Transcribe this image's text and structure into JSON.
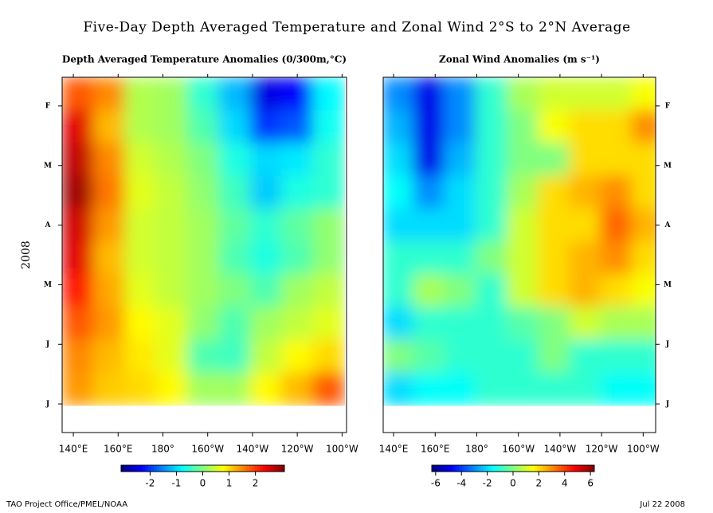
{
  "title": "Five-Day Depth Averaged Temperature and Zonal Wind  2°S to 2°N Average",
  "ylabel": "2008",
  "footer_left": "TAO Project Office/PMEL/NOAA",
  "footer_right": "Jul 22 2008",
  "chart_data": [
    {
      "type": "heatmap",
      "title": "Depth Averaged Temperature Anomalies (0/300m,°C)",
      "x": [
        142,
        156,
        170,
        184,
        198,
        212,
        226,
        240,
        254
      ],
      "y": [
        0.8,
        1.35,
        1.9,
        2.45,
        3.0,
        3.55,
        4.1,
        4.65,
        5.2,
        5.75
      ],
      "values": [
        [
          1.8,
          1.5,
          0.3,
          0.2,
          -0.5,
          -1.2,
          -2.5,
          -2.3,
          -0.8
        ],
        [
          2.5,
          1.2,
          0.3,
          0.2,
          -0.3,
          -1.0,
          -2.0,
          -1.8,
          -0.7
        ],
        [
          2.7,
          1.5,
          0.5,
          0.3,
          0,
          -0.6,
          -1.0,
          -0.9,
          -0.5
        ],
        [
          2.9,
          1.6,
          0.6,
          0.4,
          0.1,
          -0.4,
          -1.1,
          -0.6,
          -0.5
        ],
        [
          2.6,
          1.4,
          0.5,
          0.4,
          0.2,
          -0.2,
          -0.5,
          -0.2,
          0.1
        ],
        [
          2.5,
          1.2,
          0.5,
          0.4,
          0.2,
          -0.3,
          -0.6,
          -0.3,
          0.1
        ],
        [
          2.2,
          1.3,
          0.6,
          0.4,
          0.2,
          0.0,
          -0.3,
          0.2,
          0.4
        ],
        [
          1.8,
          1.4,
          0.8,
          0.6,
          0.1,
          -0.3,
          0.2,
          0.4,
          0.6
        ],
        [
          1.5,
          1.2,
          0.9,
          0.6,
          -0.3,
          -0.4,
          0.4,
          0.8,
          1.0
        ],
        [
          1.4,
          1.1,
          1.0,
          0.8,
          0.2,
          0.2,
          0.8,
          1.2,
          1.8
        ]
      ],
      "xlim": [
        135,
        262
      ],
      "ylim": [
        0.52,
        6.48
      ],
      "xticks": [
        {
          "value": 140,
          "label": "140°E"
        },
        {
          "value": 160,
          "label": "160°E"
        },
        {
          "value": 180,
          "label": "180°"
        },
        {
          "value": 200,
          "label": "160°W"
        },
        {
          "value": 220,
          "label": "140°W"
        },
        {
          "value": 240,
          "label": "120°W"
        },
        {
          "value": 260,
          "label": "100°W"
        }
      ],
      "yticks": [
        {
          "value": 1,
          "label": "F"
        },
        {
          "value": 2,
          "label": "M"
        },
        {
          "value": 3,
          "label": "A"
        },
        {
          "value": 4,
          "label": "M"
        },
        {
          "value": 5,
          "label": "J"
        },
        {
          "value": 6,
          "label": "J"
        }
      ],
      "yaxis_side": "left",
      "clim": [
        -3.1,
        3.1
      ],
      "cticks": [
        -2,
        -1,
        0,
        1,
        2
      ],
      "colormap": "jet"
    },
    {
      "type": "heatmap",
      "title": "Zonal Wind Anomalies (m s⁻¹)",
      "x": [
        142,
        157,
        172,
        187,
        202,
        217,
        232,
        247,
        262
      ],
      "y": [
        0.8,
        1.35,
        1.9,
        2.45,
        3.0,
        3.55,
        4.1,
        4.65,
        5.2,
        5.75
      ],
      "values": [
        [
          -3,
          -5,
          -3,
          -1,
          0.5,
          1,
          1,
          1,
          1.5
        ],
        [
          -2.5,
          -5,
          -3,
          -1,
          0,
          1.5,
          2,
          2,
          3
        ],
        [
          -2,
          -5,
          -2.5,
          -1,
          0,
          0,
          2,
          2,
          2
        ],
        [
          -1.5,
          -3,
          -2,
          -1,
          0.5,
          2,
          2.5,
          3,
          2
        ],
        [
          -2,
          -2,
          -2,
          -1,
          1,
          2,
          2,
          3.5,
          2.5
        ],
        [
          -1,
          -1,
          -1,
          0,
          1,
          2,
          2.5,
          3,
          2
        ],
        [
          -1,
          0.5,
          0,
          -1,
          1,
          2,
          2.5,
          2,
          1.5
        ],
        [
          -2,
          -1,
          -1,
          -1,
          -0.5,
          0,
          1,
          0.5,
          0.5
        ],
        [
          0,
          -0.5,
          -1,
          -1,
          -1,
          0,
          -1,
          -1,
          -1
        ],
        [
          -2,
          -1.5,
          -1.5,
          -1,
          -1,
          -1,
          -1,
          -1.5,
          -1.5
        ]
      ],
      "xlim": [
        135,
        266
      ],
      "ylim": [
        0.52,
        6.48
      ],
      "xticks": [
        {
          "value": 140,
          "label": "140°E"
        },
        {
          "value": 160,
          "label": "160°E"
        },
        {
          "value": 180,
          "label": "180°"
        },
        {
          "value": 200,
          "label": "160°W"
        },
        {
          "value": 220,
          "label": "140°W"
        },
        {
          "value": 240,
          "label": "120°W"
        },
        {
          "value": 260,
          "label": "100°W"
        }
      ],
      "yticks": [
        {
          "value": 1,
          "label": "F"
        },
        {
          "value": 2,
          "label": "M"
        },
        {
          "value": 3,
          "label": "A"
        },
        {
          "value": 4,
          "label": "M"
        },
        {
          "value": 5,
          "label": "J"
        },
        {
          "value": 6,
          "label": "J"
        }
      ],
      "yaxis_side": "right",
      "clim": [
        -6.3,
        6.3
      ],
      "cticks": [
        -6,
        -4,
        -2,
        0,
        2,
        4,
        6
      ],
      "colormap": "jet"
    }
  ]
}
